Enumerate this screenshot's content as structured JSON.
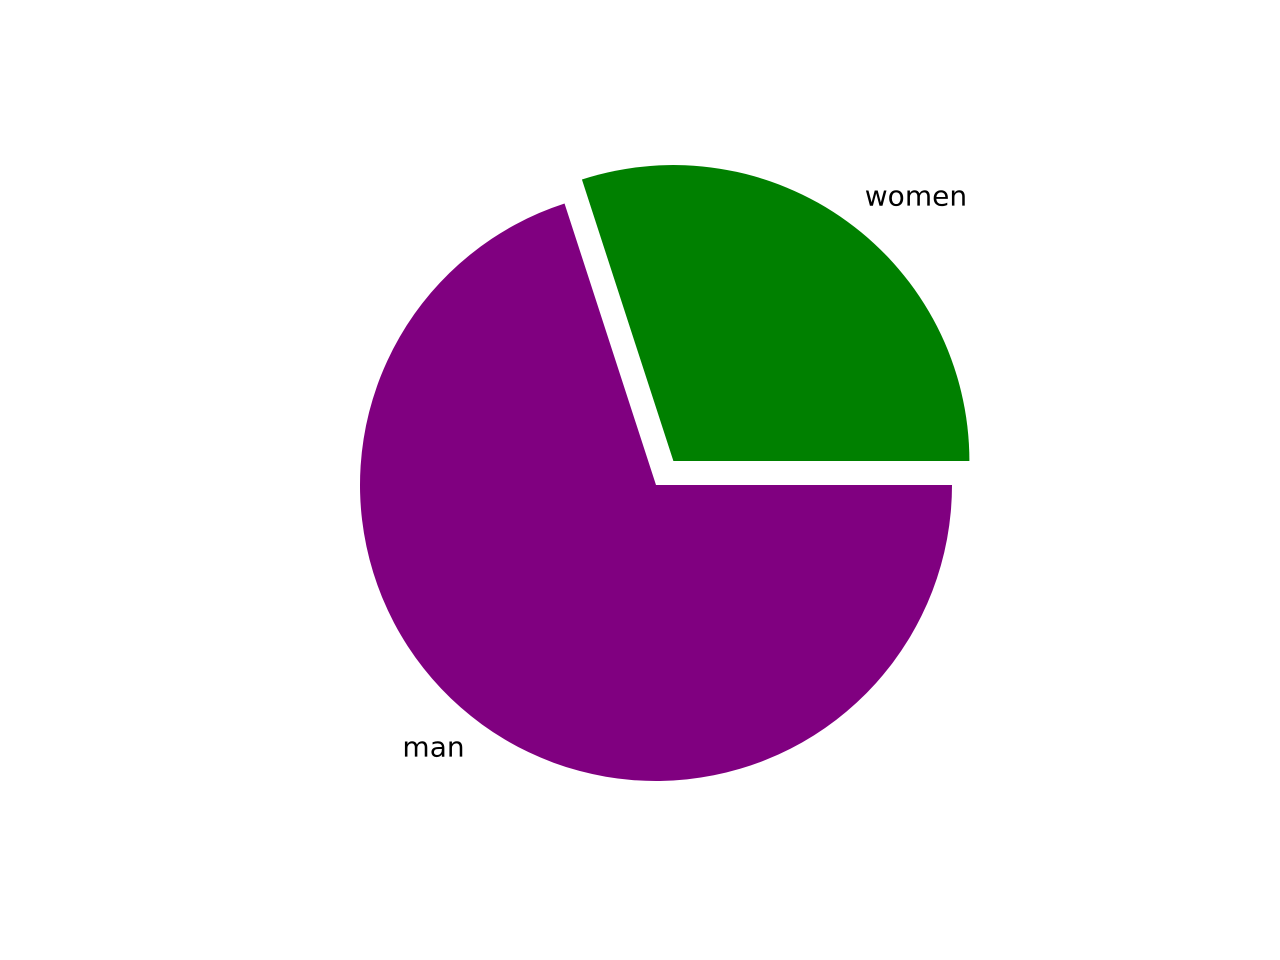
{
  "chart_data": {
    "type": "pie",
    "slices": [
      {
        "label": "women",
        "value": 30,
        "color": "#008000",
        "explode": 0.1
      },
      {
        "label": "man",
        "value": 70,
        "color": "#800080",
        "explode": 0
      }
    ],
    "start_angle": 0,
    "direction": "counterclockwise",
    "legend": "none"
  }
}
